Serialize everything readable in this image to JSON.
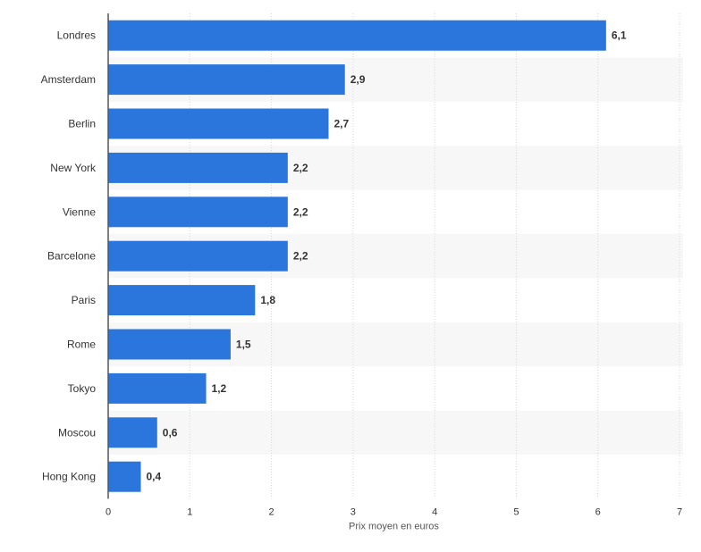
{
  "chart_data": {
    "type": "bar",
    "orientation": "horizontal",
    "categories": [
      "Londres",
      "Amsterdam",
      "Berlin",
      "New York",
      "Vienne",
      "Barcelone",
      "Paris",
      "Rome",
      "Tokyo",
      "Moscou",
      "Hong Kong"
    ],
    "values": [
      6.1,
      2.9,
      2.7,
      2.2,
      2.2,
      2.2,
      1.8,
      1.5,
      1.2,
      0.6,
      0.4
    ],
    "value_labels": [
      "6,1",
      "2,9",
      "2,7",
      "2,2",
      "2,2",
      "2,2",
      "1,8",
      "1,5",
      "1,2",
      "0,6",
      "0,4"
    ],
    "xlabel": "Prix moyen en euros",
    "xlim": [
      0,
      7
    ],
    "xticks": [
      0,
      1,
      2,
      3,
      4,
      5,
      6,
      7
    ],
    "xtick_labels": [
      "0",
      "1",
      "2",
      "3",
      "4",
      "5",
      "6",
      "7"
    ],
    "grid": true,
    "colors": {
      "bar": "#2a76dd",
      "band": "#f7f7f7",
      "grid": "#d6d6d6",
      "axis": "#555555",
      "text": "#333333",
      "value_text": "#333333"
    }
  }
}
